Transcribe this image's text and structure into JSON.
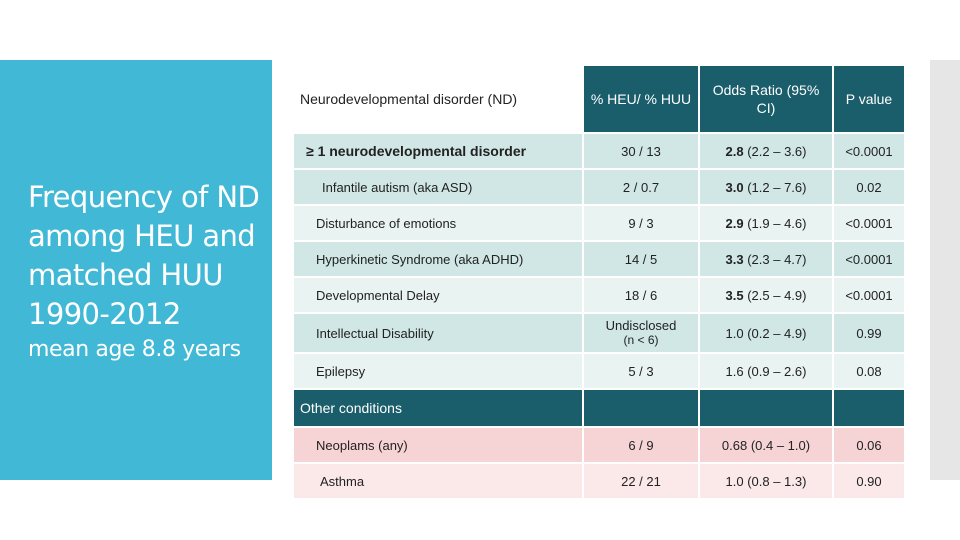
{
  "slide": {
    "title": "Frequency of ND among HEU and matched HUU 1990-2012",
    "subtitle": "mean age 8.8 years"
  },
  "table": {
    "headers": [
      "Neurodevelopmental disorder (ND)",
      "% HEU/ % HUU",
      "Odds Ratio (95% CI)",
      "P value"
    ],
    "nd_rows": [
      {
        "label": "≥ 1 neurodevelopmental disorder",
        "ratio": "30 / 13",
        "or_main": "2.8",
        "or_ci": "(2.2 – 3.6)",
        "p": "<0.0001"
      },
      {
        "label": "Infantile autism (aka ASD)",
        "ratio": "2 / 0.7",
        "or_main": "3.0",
        "or_ci": "(1.2 – 7.6)",
        "p": "0.02"
      },
      {
        "label": "Disturbance of emotions",
        "ratio": "9 / 3",
        "or_main": "2.9",
        "or_ci": "(1.9 – 4.6)",
        "p": "<0.0001"
      },
      {
        "label": "Hyperkinetic Syndrome (aka ADHD)",
        "ratio": "14 / 5",
        "or_main": "3.3",
        "or_ci": "(2.3 – 4.7)",
        "p": "<0.0001"
      },
      {
        "label": "Developmental Delay",
        "ratio": "18 / 6",
        "or_main": "3.5",
        "or_ci": "(2.5 – 4.9)",
        "p": "<0.0001"
      },
      {
        "label": "Intellectual Disability",
        "ratio_line1": "Undisclosed",
        "ratio_line2": "(n < 6)",
        "or_text": "1.0 (0.2 – 4.9)",
        "p": "0.99"
      },
      {
        "label": "Epilepsy",
        "ratio": "5 / 3",
        "or_text": "1.6 (0.9 – 2.6)",
        "p": "0.08"
      }
    ],
    "other_header": "Other conditions",
    "other_rows": [
      {
        "label": "Neoplams (any)",
        "ratio": "6 / 9",
        "or_text": "0.68 (0.4 – 1.0)",
        "p": "0.06"
      },
      {
        "label": "Asthma",
        "ratio": "22 / 21",
        "or_text": "1.0 (0.8 – 1.3)",
        "p": "0.90"
      }
    ]
  }
}
